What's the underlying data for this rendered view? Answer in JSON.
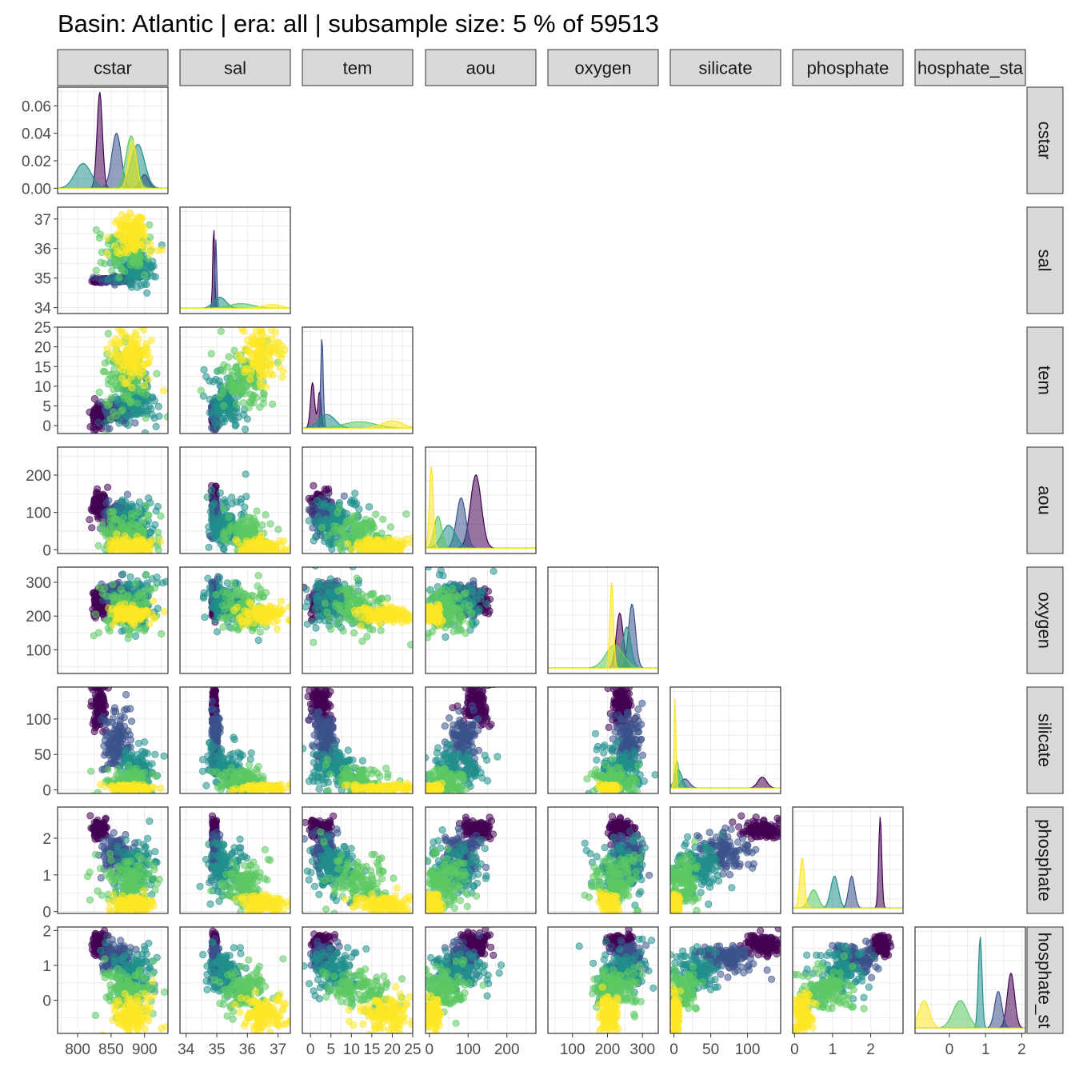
{
  "title": "Basin: Atlantic | era: all | subsample size: 5 % of 59513",
  "colors": {
    "strip_fill": "#d9d9d9",
    "strip_border": "#333333",
    "panel_border": "#333333",
    "grid": "#ebebeb",
    "palette": [
      "#440154",
      "#3b528b",
      "#21908c",
      "#5dc963",
      "#fde725"
    ]
  },
  "chart_data": {
    "type": "scatter",
    "subtype": "pairs-matrix",
    "variables": [
      "cstar",
      "sal",
      "tem",
      "aou",
      "oxygen",
      "silicate",
      "phosphate",
      "phosphate_star"
    ],
    "strip_labels": [
      "cstar",
      "sal",
      "tem",
      "aou",
      "oxygen",
      "silicate",
      "phosphate",
      "hosphate_sta"
    ],
    "row_strip_labels": [
      "cstar",
      "sal",
      "tem",
      "aou",
      "oxygen",
      "silicate",
      "phosphate",
      "hosphate_st"
    ],
    "ranges": {
      "cstar": [
        770,
        935
      ],
      "sal": [
        33.8,
        37.4
      ],
      "tem": [
        -2,
        25
      ],
      "aou": [
        -10,
        275
      ],
      "oxygen": [
        30,
        345
      ],
      "silicate": [
        -5,
        145
      ],
      "phosphate": [
        -0.05,
        2.85
      ],
      "phosphate_star": [
        -0.95,
        2.1
      ]
    },
    "x_ticks": {
      "cstar": [
        800,
        850,
        900
      ],
      "sal": [
        34,
        35,
        36,
        37
      ],
      "tem": [
        0,
        5,
        10,
        15,
        20,
        25
      ],
      "aou": [
        0,
        100,
        200
      ],
      "oxygen": [
        100,
        200,
        300
      ],
      "silicate": [
        0,
        50,
        100
      ],
      "phosphate": [
        0,
        1,
        2
      ],
      "phosphate_star": [
        0,
        1,
        2
      ]
    },
    "x_tick_labels": {
      "cstar": [
        "800",
        "850",
        "900"
      ],
      "sal": [
        "34",
        "35",
        "36",
        "37"
      ],
      "tem": [
        "0",
        "5",
        "10",
        "15",
        "20",
        "25"
      ],
      "aou": [
        "0",
        "100",
        "200"
      ],
      "oxygen": [
        "100",
        "200",
        "300"
      ],
      "silicate": [
        "0",
        "50",
        "100"
      ],
      "phosphate": [
        "0",
        "1",
        "2"
      ],
      "phosphate_star": [
        "0",
        "1",
        "2"
      ]
    },
    "y_ticks": {
      "cstar": [
        0,
        0.02,
        0.04,
        0.06
      ],
      "sal": [
        34,
        35,
        36,
        37
      ],
      "tem": [
        0,
        5,
        10,
        15,
        20,
        25
      ],
      "aou": [
        0,
        100,
        200
      ],
      "oxygen": [
        100,
        200,
        300
      ],
      "silicate": [
        0,
        50,
        100
      ],
      "phosphate": [
        0,
        1,
        2
      ],
      "phosphate_star": [
        0,
        1,
        2
      ]
    },
    "y_tick_labels": {
      "cstar": [
        "0.00",
        "0.02",
        "0.04",
        "0.06"
      ],
      "sal": [
        "34",
        "35",
        "36",
        "37"
      ],
      "tem": [
        "0",
        "5",
        "10",
        "15",
        "20",
        "25"
      ],
      "aou": [
        "0",
        "100",
        "200"
      ],
      "oxygen": [
        "100",
        "200",
        "300"
      ],
      "silicate": [
        "0",
        "50",
        "100"
      ],
      "phosphate": [
        "0",
        "1",
        "2"
      ],
      "phosphate_star": [
        "0",
        "1",
        "2"
      ]
    },
    "density_ymax": 0.072,
    "groups": [
      {
        "color": "#440154",
        "center": {
          "cstar": 833,
          "sal": 34.92,
          "tem": 2.5,
          "aou": 120,
          "oxygen": 240,
          "silicate": 120,
          "phosphate": 2.25,
          "phosphate_star": 1.6
        },
        "spread": {
          "cstar": 5,
          "sal": 0.03,
          "tem": 1.2,
          "aou": 18,
          "oxygen": 18,
          "silicate": 15,
          "phosphate": 0.12,
          "phosphate_star": 0.15
        },
        "density_peaks": {
          "cstar": [
            [
              833,
              0.07,
              4
            ],
            [
              900,
              0.01,
              6
            ]
          ],
          "sal": [
            [
              34.9,
              0.9,
              0.03
            ]
          ],
          "tem": [
            [
              0.5,
              0.5,
              0.5
            ],
            [
              2.2,
              0.4,
              0.4
            ]
          ],
          "aou": [
            [
              120,
              0.8,
              14
            ]
          ],
          "oxygen": [
            [
              235,
              0.6,
              10
            ]
          ],
          "silicate": [
            [
              120,
              0.12,
              6
            ]
          ],
          "phosphate": [
            [
              2.25,
              1.0,
              0.04
            ]
          ],
          "phosphate_star": [
            [
              1.7,
              0.6,
              0.1
            ]
          ]
        }
      },
      {
        "color": "#3b528b",
        "center": {
          "cstar": 858,
          "sal": 34.95,
          "tem": 3.5,
          "aou": 85,
          "oxygen": 260,
          "silicate": 70,
          "phosphate": 1.6,
          "phosphate_star": 1.2
        },
        "spread": {
          "cstar": 10,
          "sal": 0.06,
          "tem": 1.5,
          "aou": 20,
          "oxygen": 20,
          "silicate": 20,
          "phosphate": 0.25,
          "phosphate_star": 0.2
        },
        "density_peaks": {
          "cstar": [
            [
              858,
              0.04,
              7
            ]
          ],
          "sal": [
            [
              34.97,
              0.75,
              0.03
            ]
          ],
          "tem": [
            [
              2.8,
              1.0,
              0.3
            ]
          ],
          "aou": [
            [
              82,
              0.55,
              12
            ]
          ],
          "oxygen": [
            [
              270,
              0.7,
              10
            ]
          ],
          "silicate": [
            [
              15,
              0.1,
              6
            ]
          ],
          "phosphate": [
            [
              1.5,
              0.35,
              0.08
            ]
          ],
          "phosphate_star": [
            [
              1.35,
              0.4,
              0.1
            ]
          ]
        }
      },
      {
        "color": "#21908c",
        "center": {
          "cstar": 885,
          "sal": 35.3,
          "tem": 6.0,
          "aou": 70,
          "oxygen": 240,
          "silicate": 30,
          "phosphate": 1.2,
          "phosphate_star": 0.8
        },
        "spread": {
          "cstar": 15,
          "sal": 0.3,
          "tem": 3.0,
          "aou": 35,
          "oxygen": 35,
          "silicate": 15,
          "phosphate": 0.35,
          "phosphate_star": 0.3
        },
        "density_peaks": {
          "cstar": [
            [
              808,
              0.018,
              12
            ],
            [
              890,
              0.032,
              10
            ]
          ],
          "sal": [
            [
              35.1,
              0.12,
              0.2
            ]
          ],
          "tem": [
            [
              4.0,
              0.15,
              2.0
            ]
          ],
          "aou": [
            [
              50,
              0.25,
              18
            ]
          ],
          "oxygen": [
            [
              255,
              0.45,
              12
            ]
          ],
          "silicate": [
            [
              6,
              0.2,
              5
            ]
          ],
          "phosphate": [
            [
              1.05,
              0.35,
              0.1
            ]
          ],
          "phosphate_star": [
            [
              0.85,
              1.0,
              0.05
            ]
          ]
        }
      },
      {
        "color": "#5dc963",
        "center": {
          "cstar": 875,
          "sal": 35.9,
          "tem": 12.0,
          "aou": 40,
          "oxygen": 220,
          "silicate": 12,
          "phosphate": 0.8,
          "phosphate_star": 0.3
        },
        "spread": {
          "cstar": 20,
          "sal": 0.4,
          "tem": 4.0,
          "aou": 30,
          "oxygen": 35,
          "silicate": 10,
          "phosphate": 0.35,
          "phosphate_star": 0.3
        },
        "density_peaks": {
          "cstar": [
            [
              880,
              0.038,
              8
            ]
          ],
          "sal": [
            [
              35.8,
              0.05,
              0.4
            ]
          ],
          "tem": [
            [
              12.0,
              0.07,
              4.0
            ]
          ],
          "aou": [
            [
              22,
              0.35,
              10
            ]
          ],
          "oxygen": [
            [
              220,
              0.25,
              25
            ]
          ],
          "silicate": [
            [
              4,
              0.3,
              3
            ]
          ],
          "phosphate": [
            [
              0.5,
              0.2,
              0.12
            ]
          ],
          "phosphate_star": [
            [
              0.3,
              0.3,
              0.2
            ]
          ]
        }
      },
      {
        "color": "#fde725",
        "center": {
          "cstar": 880,
          "sal": 36.5,
          "tem": 18.0,
          "aou": 10,
          "oxygen": 205,
          "silicate": 3,
          "phosphate": 0.2,
          "phosphate_star": -0.4
        },
        "spread": {
          "cstar": 15,
          "sal": 0.35,
          "tem": 3.5,
          "aou": 10,
          "oxygen": 12,
          "silicate": 2,
          "phosphate": 0.12,
          "phosphate_star": 0.25
        },
        "density_peaks": {
          "cstar": [
            [
              882,
              0.035,
              6
            ]
          ],
          "sal": [
            [
              36.8,
              0.04,
              0.3
            ]
          ],
          "tem": [
            [
              20.0,
              0.08,
              2.5
            ]
          ],
          "aou": [
            [
              5,
              0.9,
              5
            ]
          ],
          "oxygen": [
            [
              212,
              0.95,
              5
            ]
          ],
          "silicate": [
            [
              1.5,
              1.0,
              1.2
            ]
          ],
          "phosphate": [
            [
              0.2,
              0.55,
              0.06
            ]
          ],
          "phosphate_star": [
            [
              -0.7,
              0.3,
              0.15
            ]
          ]
        }
      }
    ]
  }
}
